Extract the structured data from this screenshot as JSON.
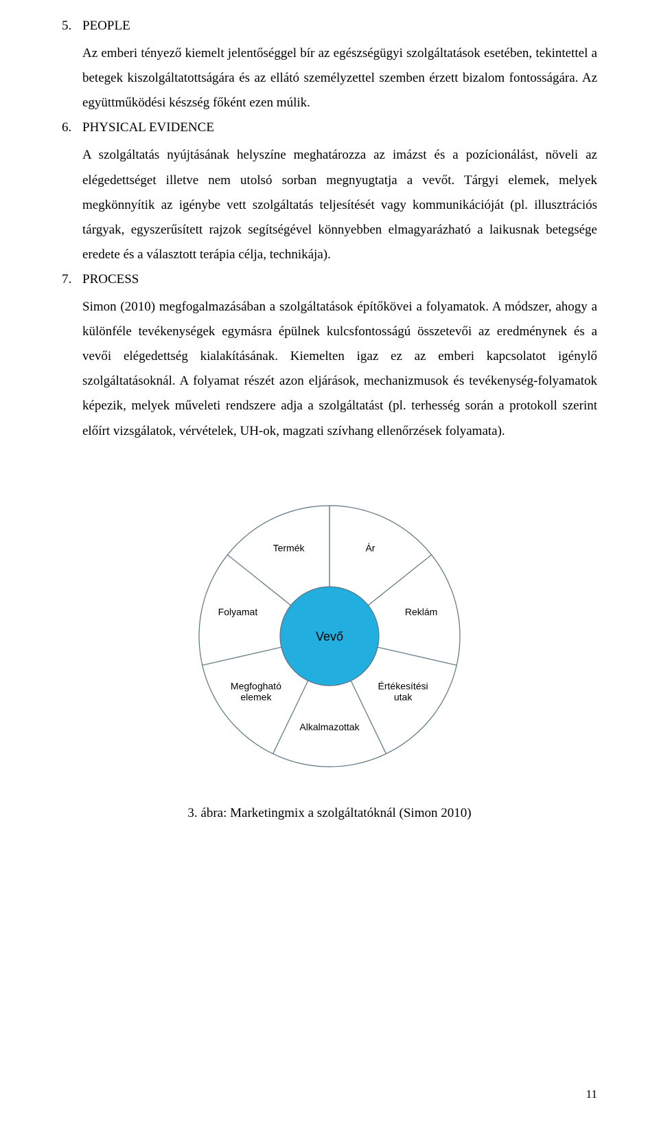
{
  "sections": {
    "s5": {
      "num": "5.",
      "title": "PEOPLE",
      "p1": "Az emberi tényező kiemelt jelentőséggel bír az egészségügyi szolgáltatások esetében, tekintettel a betegek kiszolgáltatottságára és az ellátó személyzettel szemben érzett bizalom fontosságára. Az együttműködési készség főként ezen múlik."
    },
    "s6": {
      "num": "6.",
      "title": "PHYSICAL EVIDENCE",
      "p1": "A szolgáltatás nyújtásának helyszíne meghatározza az imázst és a pozícionálást, növeli az elégedettséget illetve nem utolsó sorban megnyugtatja a vevőt. Tárgyi elemek, melyek megkönnyítik az igénybe vett szolgáltatás teljesítését vagy kommunikációját (pl. illusztrációs tárgyak, egyszerűsített rajzok segítségével könnyebben elmagyarázható a laikusnak betegsége eredete és a választott terápia célja, technikája)."
    },
    "s7": {
      "num": "7.",
      "title": "PROCESS",
      "p1": "Simon (2010) megfogalmazásában a szolgáltatások építőkövei a folyamatok. A módszer, ahogy a különféle tevékenységek egymásra épülnek kulcsfontosságú összetevői az eredménynek és a vevői elégedettség kialakításának. Kiemelten igaz ez az emberi kapcsolatot igénylő szolgáltatásoknál. A folyamat részét azon eljárások, mechanizmusok és tevékenység-folyamatok képezik, melyek műveleti rendszere adja a szolgáltatást (pl. terhesség során a protokoll szerint előírt vizsgálatok, vérvételek, UH-ok, magzati szívhang ellenőrzések folyamata)."
    }
  },
  "diagram": {
    "type": "pie-wheel",
    "outer_radius": 190,
    "inner_radius": 72,
    "stroke_color": "#5a7380",
    "stroke_width": 1.2,
    "background_color": "#ffffff",
    "center_fill": "#23aee0",
    "center_label": "Vevő",
    "center_label_fontsize": 18,
    "center_label_color": "#000000",
    "slice_label_fontsize": 14,
    "slice_label_color": "#000000",
    "slices": [
      {
        "label_lines": [
          "Ár"
        ],
        "angle_start": -90,
        "angle_end": -38.57
      },
      {
        "label_lines": [
          "Reklám"
        ],
        "angle_start": -38.57,
        "angle_end": 12.86
      },
      {
        "label_lines": [
          "Értékesítési",
          "utak"
        ],
        "angle_start": 12.86,
        "angle_end": 64.29
      },
      {
        "label_lines": [
          "Alkalmazottak"
        ],
        "angle_start": 64.29,
        "angle_end": 115.71
      },
      {
        "label_lines": [
          "Megfogható",
          "elemek"
        ],
        "angle_start": 115.71,
        "angle_end": 167.14
      },
      {
        "label_lines": [
          "Folyamat"
        ],
        "angle_start": 167.14,
        "angle_end": 218.57
      },
      {
        "label_lines": [
          "Termék"
        ],
        "angle_start": 218.57,
        "angle_end": 270.0
      }
    ]
  },
  "caption": "3. ábra: Marketingmix a szolgáltatóknál (Simon 2010)",
  "page_number": "11"
}
